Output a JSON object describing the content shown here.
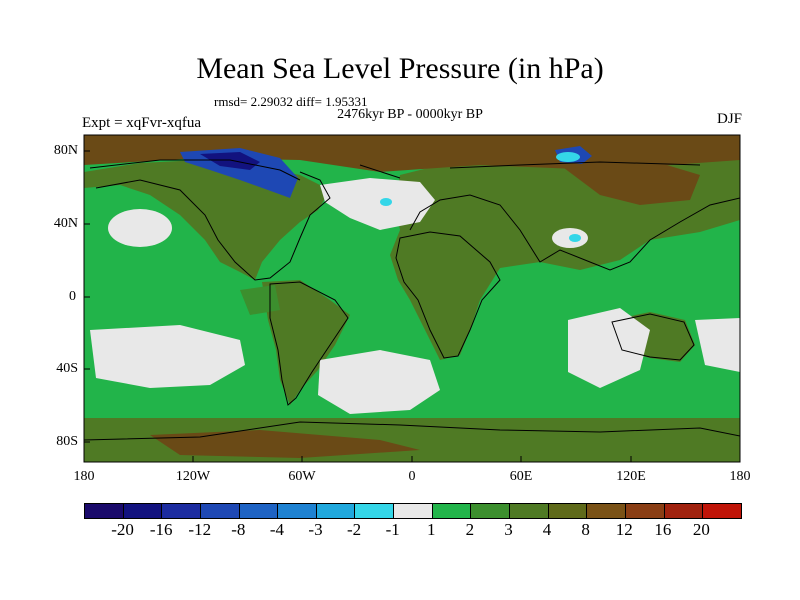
{
  "title": "Mean Sea Level Pressure (in hPa)",
  "stats": "rmsd= 2.29032 diff= 1.95331",
  "period": "2476kyr BP - 0000kyr BP",
  "experiment": "Expt = xqFvr-xqfua",
  "season": "DJF",
  "lat_labels": [
    "80N",
    "40N",
    "0",
    "40S",
    "80S"
  ],
  "lon_labels": [
    "180",
    "120W",
    "60W",
    "0",
    "60E",
    "120E",
    "180"
  ],
  "colorbar": {
    "colors": [
      "#1a0a6b",
      "#12127f",
      "#1c2ca0",
      "#1e48b4",
      "#1e63c4",
      "#1e82d2",
      "#20a8dd",
      "#34d6e8",
      "#e8e8e8",
      "#22b44a",
      "#3c8f2e",
      "#4f7a24",
      "#5f6a1a",
      "#7a5216",
      "#8a3e14",
      "#a0220e",
      "#c01408"
    ],
    "labels": [
      "-20",
      "-16",
      "-12",
      "-8",
      "-4",
      "-3",
      "-2",
      "-1",
      "1",
      "2",
      "3",
      "4",
      "8",
      "12",
      "16",
      "20"
    ]
  },
  "palette": {
    "ocean_green": "#22b44a",
    "land_olive": "#4f7a24",
    "mid_green": "#3c8f2e",
    "brown": "#6a4a16",
    "grey": "#e8e8e8",
    "blue": "#1e48b4",
    "cyan": "#34d6e8"
  }
}
